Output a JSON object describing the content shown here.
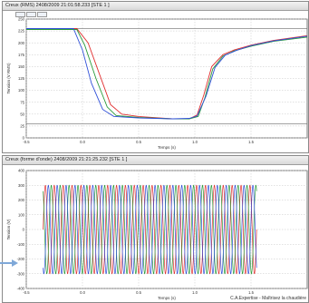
{
  "colors": {
    "red": "#e03030",
    "green": "#2a9a3a",
    "blue": "#3050d8",
    "grid": "#c4c4c4",
    "frame": "#555555"
  },
  "top_panel": {
    "title": "Creux (RMS) 2408/2009 21:01:58.233  [STE 1          ]"
  },
  "bottom_panel": {
    "title": "Creux (forme d'onde) 2408/2009 21:21:25.232  [STE 1          ]",
    "caption": "C.A.Expertise - Maîtrisez la chaudière"
  },
  "chart_data": [
    {
      "type": "line",
      "ylabel": "Tension (V RMS)",
      "xlabel": "Temps (s)",
      "xlim": [
        -0.5,
        2.0
      ],
      "ylim": [
        0,
        250
      ],
      "y_ticks": [
        "250",
        "225",
        "200",
        "175",
        "150",
        "125",
        "100",
        "75",
        "50",
        "25",
        "0"
      ],
      "x_ticks": [
        "-0.5",
        "0.0",
        "0.5",
        "1.0",
        "1.5"
      ],
      "hlines": [
        230,
        30
      ],
      "series": [
        {
          "color": "red",
          "x": [
            -0.5,
            -0.05,
            0.05,
            0.15,
            0.25,
            0.35,
            0.5,
            0.8,
            0.95,
            1.02,
            1.08,
            1.15,
            1.25,
            1.35,
            1.5,
            1.7,
            2.0
          ],
          "y": [
            230,
            230,
            200,
            135,
            70,
            50,
            45,
            40,
            40,
            48,
            90,
            150,
            175,
            185,
            195,
            205,
            215
          ]
        },
        {
          "color": "green",
          "x": [
            -0.5,
            -0.05,
            0.02,
            0.12,
            0.22,
            0.3,
            0.5,
            0.8,
            0.95,
            1.03,
            1.09,
            1.16,
            1.25,
            1.35,
            1.5,
            1.7,
            2.0
          ],
          "y": [
            228,
            228,
            195,
            125,
            65,
            47,
            43,
            40,
            40,
            45,
            85,
            145,
            172,
            183,
            193,
            203,
            212
          ]
        },
        {
          "color": "blue",
          "x": [
            -0.5,
            -0.08,
            0.0,
            0.08,
            0.18,
            0.28,
            0.5,
            0.8,
            0.95,
            1.02,
            1.1,
            1.18,
            1.27,
            1.37,
            1.5,
            1.7,
            2.0
          ],
          "y": [
            230,
            230,
            185,
            115,
            60,
            45,
            42,
            40,
            41,
            46,
            88,
            148,
            174,
            184,
            194,
            204,
            214
          ]
        }
      ]
    },
    {
      "type": "line",
      "ylabel": "Tension (V)",
      "xlabel": "Temps (s)",
      "xlim": [
        -0.5,
        2.0
      ],
      "ylim": [
        -400,
        400
      ],
      "y_ticks": [
        "400",
        "300",
        "200",
        "100",
        "0",
        "-100",
        "-200",
        "-300",
        "-400"
      ],
      "x_ticks": [
        "-0.5",
        "0.0",
        "0.5",
        "1.0",
        "1.5"
      ],
      "waveform": {
        "amplitude": 300,
        "cycles": 24,
        "start": -0.35,
        "end": 1.55
      },
      "series": [
        {
          "color": "red",
          "phase_deg": 0
        },
        {
          "color": "green",
          "phase_deg": 120
        },
        {
          "color": "blue",
          "phase_deg": 240
        }
      ]
    }
  ]
}
